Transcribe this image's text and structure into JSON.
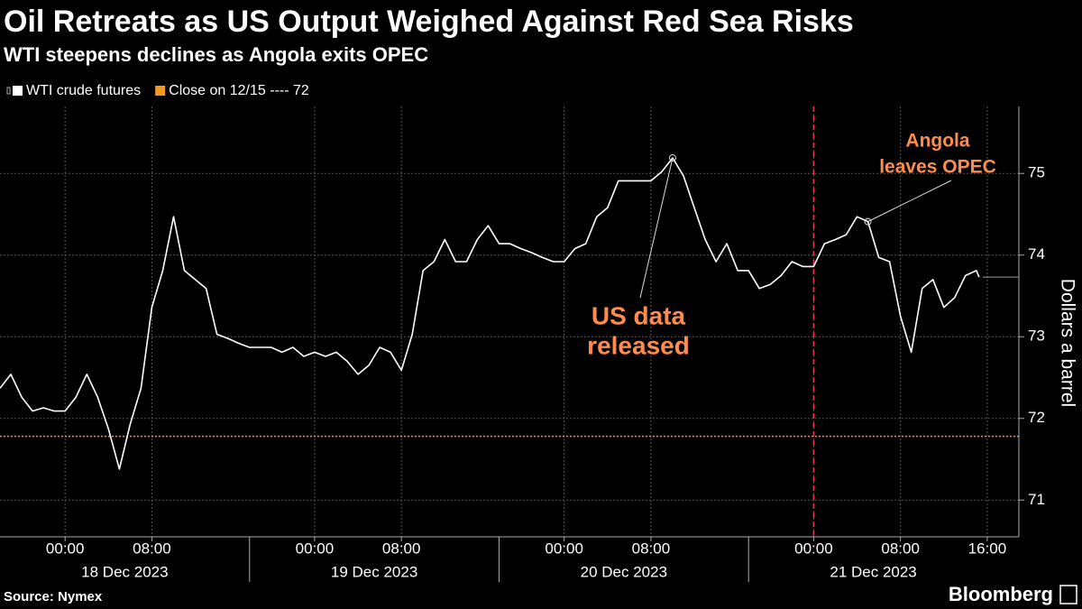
{
  "chart_data": {
    "type": "line",
    "title": "Oil Retreats as US Output Weighed Against Red Sea Risks",
    "subtitle": "WTI steepens declines as Angola exits OPEC",
    "y_label": "Dollars a barrel",
    "source": "Source: Nymex",
    "brand": "Bloomberg",
    "xlim": [
      "2023-12-17 18:00",
      "2023-12-21 18:55"
    ],
    "gaps": [
      [
        "2023-12-18 17:00",
        "2023-12-18 18:00"
      ],
      [
        "2023-12-19 17:00",
        "2023-12-19 18:00"
      ],
      [
        "2023-12-20 17:00",
        "2023-12-20 18:00"
      ]
    ],
    "xticks": [
      {
        "value": "2023-12-18 00:00",
        "label": "00:00"
      },
      {
        "value": "2023-12-18 08:00",
        "label": "08:00"
      },
      {
        "value": "2023-12-19 00:00",
        "label": "00:00"
      },
      {
        "value": "2023-12-19 08:00",
        "label": "08:00"
      },
      {
        "value": "2023-12-20 00:00",
        "label": "00:00"
      },
      {
        "value": "2023-12-20 08:00",
        "label": "08:00"
      },
      {
        "value": "2023-12-21 00:00",
        "label": "00:00"
      },
      {
        "value": "2023-12-21 08:00",
        "label": "08:00"
      },
      {
        "value": "2023-12-21 16:00",
        "label": "16:00"
      }
    ],
    "date_labels": [
      {
        "value": "2023-12-18",
        "label": "18 Dec 2023"
      },
      {
        "value": "2023-12-19",
        "label": "19 Dec 2023"
      },
      {
        "value": "2023-12-20",
        "label": "20 Dec 2023"
      },
      {
        "value": "2023-12-21",
        "label": "21 Dec 2023"
      }
    ],
    "ylim": [
      70.55,
      75.82
    ],
    "yticks": [
      71,
      72,
      73,
      74,
      75
    ],
    "grid": true,
    "x": [
      "2023-12-17 18:00",
      "2023-12-17 19:00",
      "2023-12-17 20:00",
      "2023-12-17 21:00",
      "2023-12-17 22:00",
      "2023-12-17 23:00",
      "2023-12-18 00:00",
      "2023-12-18 01:00",
      "2023-12-18 02:00",
      "2023-12-18 03:00",
      "2023-12-18 04:00",
      "2023-12-18 05:00",
      "2023-12-18 06:00",
      "2023-12-18 07:00",
      "2023-12-18 08:00",
      "2023-12-18 09:00",
      "2023-12-18 10:00",
      "2023-12-18 11:00",
      "2023-12-18 12:00",
      "2023-12-18 13:00",
      "2023-12-18 14:00",
      "2023-12-18 15:00",
      "2023-12-18 16:00",
      "2023-12-18 18:00",
      "2023-12-18 19:00",
      "2023-12-18 20:00",
      "2023-12-18 21:00",
      "2023-12-18 22:00",
      "2023-12-18 23:00",
      "2023-12-19 00:00",
      "2023-12-19 01:00",
      "2023-12-19 02:00",
      "2023-12-19 03:00",
      "2023-12-19 04:00",
      "2023-12-19 05:00",
      "2023-12-19 06:00",
      "2023-12-19 07:00",
      "2023-12-19 08:00",
      "2023-12-19 09:00",
      "2023-12-19 10:00",
      "2023-12-19 11:00",
      "2023-12-19 12:00",
      "2023-12-19 13:00",
      "2023-12-19 14:00",
      "2023-12-19 15:00",
      "2023-12-19 16:00",
      "2023-12-19 18:00",
      "2023-12-19 19:00",
      "2023-12-19 20:00",
      "2023-12-19 21:00",
      "2023-12-19 22:00",
      "2023-12-19 23:00",
      "2023-12-20 00:00",
      "2023-12-20 01:00",
      "2023-12-20 02:00",
      "2023-12-20 03:00",
      "2023-12-20 04:00",
      "2023-12-20 05:00",
      "2023-12-20 06:00",
      "2023-12-20 07:00",
      "2023-12-20 08:00",
      "2023-12-20 09:00",
      "2023-12-20 10:00",
      "2023-12-20 11:00",
      "2023-12-20 12:00",
      "2023-12-20 13:00",
      "2023-12-20 14:00",
      "2023-12-20 15:00",
      "2023-12-20 16:00",
      "2023-12-20 18:00",
      "2023-12-20 19:00",
      "2023-12-20 20:00",
      "2023-12-20 21:00",
      "2023-12-20 22:00",
      "2023-12-20 23:00",
      "2023-12-21 00:00",
      "2023-12-21 01:00",
      "2023-12-21 02:00",
      "2023-12-21 03:00",
      "2023-12-21 04:00",
      "2023-12-21 05:00",
      "2023-12-21 06:00",
      "2023-12-21 07:00",
      "2023-12-21 08:00",
      "2023-12-21 09:00",
      "2023-12-21 10:00",
      "2023-12-21 11:00",
      "2023-12-21 12:00",
      "2023-12-21 13:00",
      "2023-12-21 14:00",
      "2023-12-21 15:00",
      "2023-12-21 15:15"
    ],
    "series": [
      {
        "name": "WTI crude futures",
        "color": "#ffffff",
        "values": [
          72.37,
          72.54,
          72.26,
          72.09,
          72.13,
          72.09,
          72.09,
          72.26,
          72.54,
          72.26,
          71.87,
          71.38,
          71.93,
          72.37,
          73.36,
          73.81,
          74.47,
          73.81,
          73.7,
          73.59,
          73.03,
          72.98,
          72.92,
          72.87,
          72.87,
          72.87,
          72.81,
          72.87,
          72.76,
          72.81,
          72.76,
          72.81,
          72.7,
          72.54,
          72.65,
          72.87,
          72.81,
          72.59,
          73.03,
          73.81,
          73.92,
          74.19,
          73.92,
          73.92,
          74.19,
          74.36,
          74.14,
          74.14,
          74.08,
          74.03,
          73.97,
          73.92,
          73.92,
          74.08,
          74.14,
          74.47,
          74.58,
          74.91,
          74.91,
          74.91,
          74.91,
          75.02,
          75.19,
          74.97,
          74.58,
          74.19,
          73.92,
          74.14,
          73.81,
          73.81,
          73.59,
          73.64,
          73.75,
          73.92,
          73.86,
          73.86,
          74.14,
          74.19,
          74.25,
          74.47,
          74.41,
          73.97,
          73.92,
          73.25,
          72.81,
          73.59,
          73.7,
          73.36,
          73.48,
          73.75,
          73.81,
          73.73
        ]
      }
    ],
    "reference_line": {
      "name": "Close on 12/15 ---- 72",
      "value": 71.78,
      "color": "#f29a1f"
    },
    "event_line": {
      "x": "2023-12-21 00:00",
      "color": "#e8335a"
    },
    "annotations": [
      {
        "lines": [
          "US data",
          "released"
        ],
        "x": "2023-12-20 10:00",
        "y": 75.19,
        "color": "#ff8c4f"
      },
      {
        "lines": [
          "Angola",
          "leaves OPEC"
        ],
        "x": "2023-12-21 05:00",
        "y": 74.41,
        "color": "#ff8c4f"
      }
    ]
  }
}
